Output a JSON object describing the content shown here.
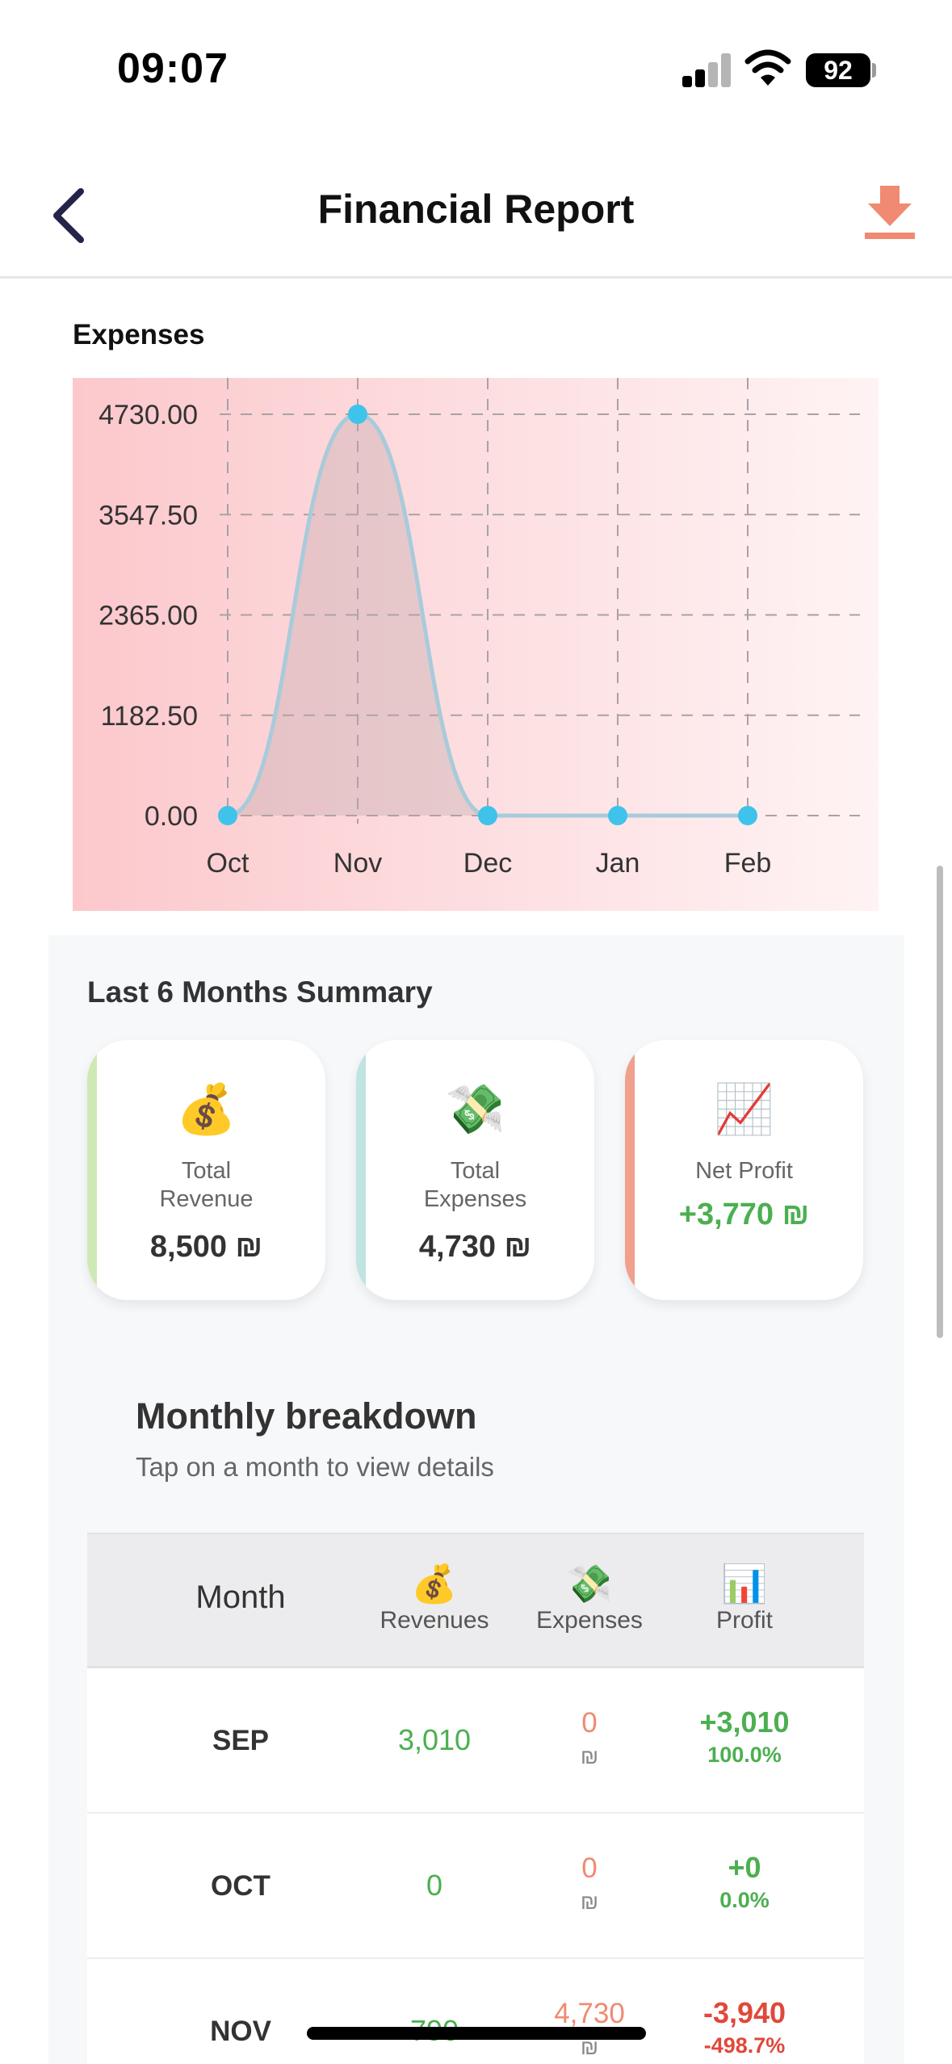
{
  "status_bar": {
    "time": "09:07",
    "battery": "92"
  },
  "header": {
    "title": "Financial Report",
    "back_icon": "chevron-left-icon",
    "download_icon": "download-icon"
  },
  "colors": {
    "accent": "#f08a72",
    "positive": "#4caf50",
    "negative": "#e0483a",
    "chart_point": "#3fc3ea",
    "chart_bg": "#fcc8cc"
  },
  "chart_data": {
    "type": "area",
    "title": "Expenses",
    "categories": [
      "Oct",
      "Nov",
      "Dec",
      "Jan",
      "Feb"
    ],
    "values": [
      0,
      4730,
      0,
      0,
      0
    ],
    "y_ticks": [
      "4730.00",
      "3547.50",
      "2365.00",
      "1182.50",
      "0.00"
    ],
    "ylim": [
      0,
      4730
    ],
    "grid": true
  },
  "summary": {
    "title": "Last 6 Months Summary",
    "cards": [
      {
        "icon": "💰",
        "label_line1": "Total",
        "label_line2": "Revenue",
        "value": "8,500 ₪",
        "stripe_color": "#cfe9b4"
      },
      {
        "icon": "💸",
        "label_line1": "Total",
        "label_line2": "Expenses",
        "value": "4,730 ₪",
        "stripe_color": "#bfe4e2"
      },
      {
        "icon": "📈",
        "label_line1": "Net Profit",
        "value": "+3,770 ₪",
        "stripe_color": "#f0a08c"
      }
    ]
  },
  "breakdown": {
    "title": "Monthly breakdown",
    "subtitle": "Tap on a month to view details",
    "headers": {
      "month": "Month",
      "revenues": "Revenues",
      "revenues_icon": "💰",
      "expenses": "Expenses",
      "expenses_icon": "💸",
      "profit": "Profit",
      "profit_icon": "📊"
    },
    "rows": [
      {
        "month": "SEP",
        "revenue": "3,010",
        "expense": "0",
        "currency": "₪",
        "profit": "+3,010",
        "pct": "100.0%"
      },
      {
        "month": "OCT",
        "revenue": "0",
        "expense": "0",
        "currency": "₪",
        "profit": "+0",
        "pct": "0.0%"
      },
      {
        "month": "NOV",
        "revenue": "790",
        "expense": "4,730",
        "currency": "₪",
        "profit": "-3,940",
        "pct": "-498.7%"
      }
    ]
  }
}
